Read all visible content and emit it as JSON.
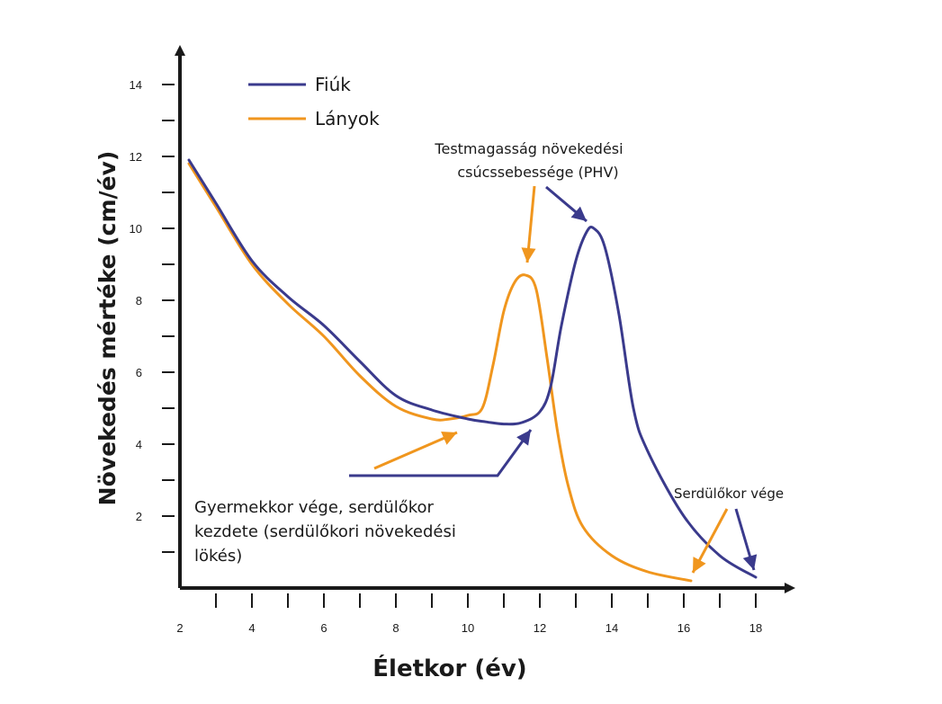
{
  "chart_data": {
    "type": "line",
    "xlabel": "Életkor (év)",
    "ylabel": "Növekedés mértéke (cm/év)",
    "x_ticks": [
      2,
      4,
      6,
      8,
      10,
      12,
      14,
      16,
      18
    ],
    "y_ticks": [
      2,
      4,
      6,
      8,
      10,
      12,
      14
    ],
    "xlim": [
      2,
      19
    ],
    "ylim": [
      0,
      15
    ],
    "grid": false,
    "legend_position": "top-left",
    "colors": {
      "boys": "#3a3a8c",
      "girls": "#f0961e",
      "axis": "#1a1a1a"
    },
    "series": [
      {
        "name": "Fiúk",
        "x": [
          2.25,
          3,
          4,
          5,
          6,
          7,
          8,
          9,
          10,
          10.5,
          11,
          11.5,
          12,
          12.3,
          12.6,
          13,
          13.3,
          13.5,
          13.8,
          14.2,
          14.6,
          15,
          16,
          17,
          18
        ],
        "y": [
          11.9,
          10.7,
          9.1,
          8.1,
          7.3,
          6.3,
          5.35,
          4.95,
          4.7,
          4.62,
          4.56,
          4.6,
          4.9,
          5.6,
          7.3,
          9.1,
          9.9,
          10.0,
          9.5,
          7.6,
          5.0,
          3.8,
          2.0,
          0.9,
          0.3
        ]
      },
      {
        "name": "Lányok",
        "x": [
          2.25,
          3,
          4,
          5,
          6,
          7,
          8,
          9,
          9.5,
          10,
          10.4,
          10.7,
          11,
          11.3,
          11.6,
          11.9,
          12.2,
          12.5,
          12.8,
          13.2,
          14,
          15,
          16.2
        ],
        "y": [
          11.8,
          10.6,
          9.0,
          7.9,
          7.0,
          5.9,
          5.05,
          4.7,
          4.7,
          4.8,
          5.0,
          6.2,
          7.7,
          8.5,
          8.7,
          8.3,
          6.4,
          4.3,
          2.8,
          1.7,
          0.9,
          0.45,
          0.2
        ]
      }
    ],
    "annotations": {
      "phv_lines": [
        "Testmagasság növekedési",
        "csúcssebessége (PHV)"
      ],
      "childhood_lines": [
        "Gyermekkor vége, serdülőkor",
        "kezdete (serdülőkori növekedési",
        "lökés)"
      ],
      "end_label": "Serdülőkor vége"
    }
  }
}
